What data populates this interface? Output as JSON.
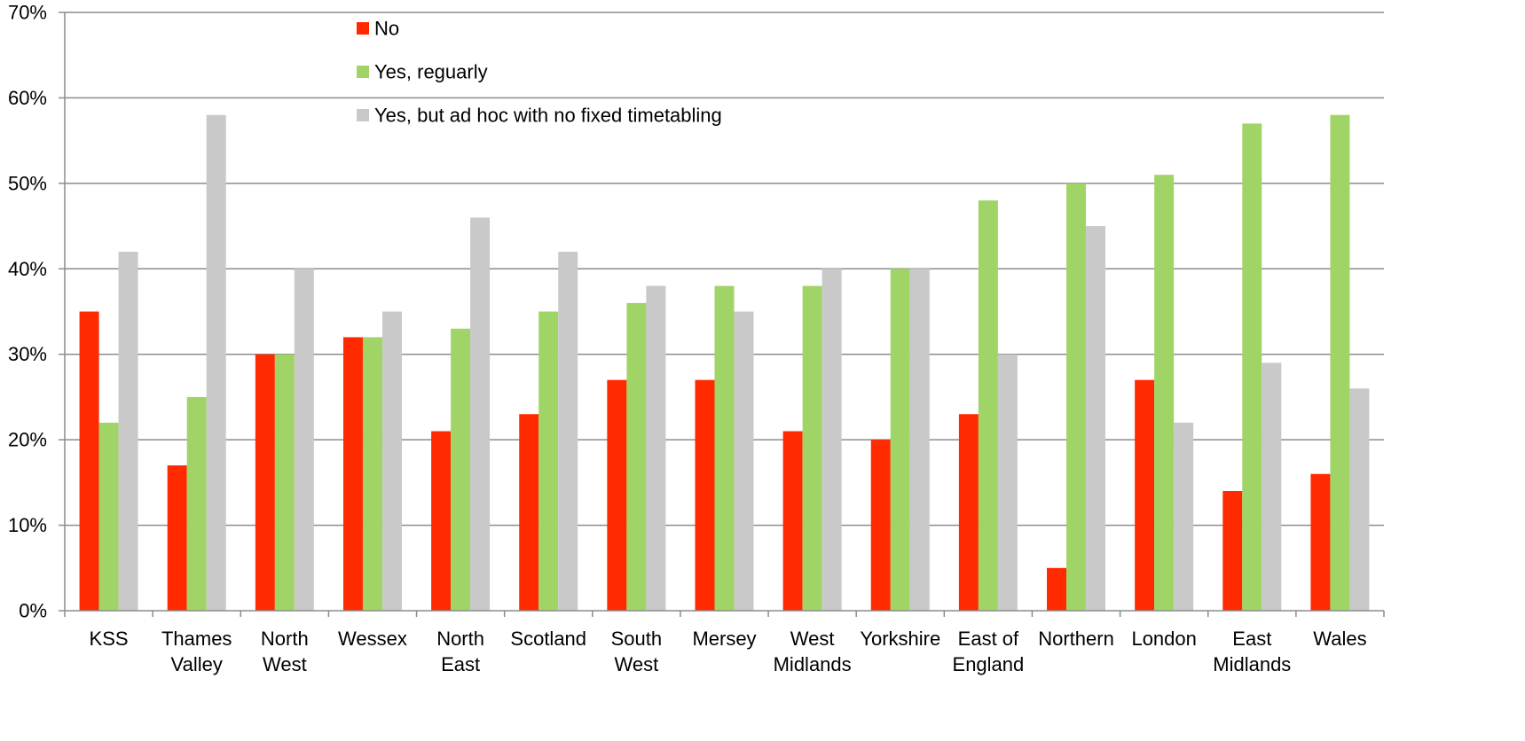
{
  "chart_data": {
    "type": "bar",
    "categories": [
      [
        "KSS"
      ],
      [
        "Thames",
        "Valley"
      ],
      [
        "North",
        "West"
      ],
      [
        "Wessex"
      ],
      [
        "North",
        "East"
      ],
      [
        "Scotland"
      ],
      [
        "South",
        "West"
      ],
      [
        "Mersey"
      ],
      [
        "West",
        "Midlands"
      ],
      [
        "Yorkshire"
      ],
      [
        "East of",
        "England"
      ],
      [
        "Northern"
      ],
      [
        "London"
      ],
      [
        "East",
        "Midlands"
      ],
      [
        "Wales"
      ]
    ],
    "series": [
      {
        "name": "No",
        "color": "#ff2a00",
        "values": [
          35,
          17,
          30,
          32,
          21,
          23,
          27,
          27,
          21,
          20,
          23,
          5,
          27,
          14,
          16
        ]
      },
      {
        "name": "Yes, reguarly",
        "color": "#a1d466",
        "values": [
          22,
          25,
          30,
          32,
          33,
          35,
          36,
          38,
          38,
          40,
          48,
          50,
          51,
          57,
          58
        ]
      },
      {
        "name": "Yes, but ad hoc with no fixed timetabling",
        "color": "#c9c9c9",
        "values": [
          42,
          58,
          40,
          35,
          46,
          42,
          38,
          35,
          40,
          40,
          30,
          45,
          22,
          29,
          26
        ]
      }
    ],
    "y_ticks": [
      "0%",
      "10%",
      "20%",
      "30%",
      "40%",
      "50%",
      "60%",
      "70%"
    ],
    "ylim": [
      0,
      70
    ],
    "grid": true,
    "legend_position": "top-left inside plot",
    "title": "",
    "xlabel": "",
    "ylabel": ""
  }
}
